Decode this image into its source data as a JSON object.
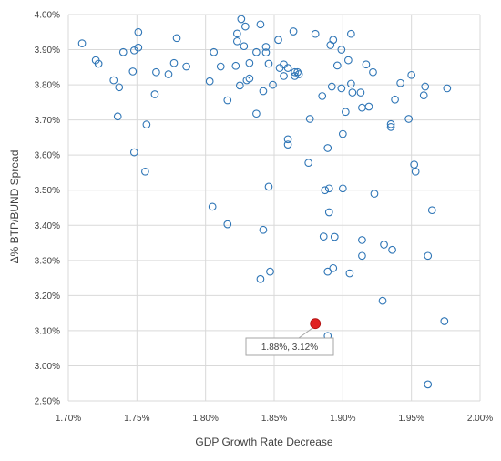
{
  "chart_data": {
    "type": "scatter",
    "title": "",
    "xlabel": "GDP Growth Rate Decrease",
    "ylabel": "Δ% BTP/BUND Spread",
    "xlim": [
      0.017,
      0.02
    ],
    "ylim": [
      0.029,
      0.04
    ],
    "x_ticks": [
      0.017,
      0.0175,
      0.018,
      0.0185,
      0.019,
      0.0195,
      0.02
    ],
    "y_ticks": [
      0.029,
      0.03,
      0.031,
      0.032,
      0.033,
      0.034,
      0.035,
      0.036,
      0.037,
      0.038,
      0.039,
      0.04
    ],
    "grid": "major both axes",
    "legend": "none",
    "colors": {
      "points": "#2e75b6",
      "highlight": "#e02020",
      "grid": "#d9d9d9"
    },
    "series": [
      {
        "values": [
          [
            0.0171,
            0.03918
          ],
          [
            0.0172,
            0.0387
          ],
          [
            0.01722,
            0.0386
          ],
          [
            0.01733,
            0.03813
          ],
          [
            0.01736,
            0.0371
          ],
          [
            0.01737,
            0.03793
          ],
          [
            0.0174,
            0.03893
          ],
          [
            0.01747,
            0.03838
          ],
          [
            0.01748,
            0.03608
          ],
          [
            0.01748,
            0.03898
          ],
          [
            0.01751,
            0.03906
          ],
          [
            0.01751,
            0.0395
          ],
          [
            0.01756,
            0.03553
          ],
          [
            0.01757,
            0.03687
          ],
          [
            0.01763,
            0.03773
          ],
          [
            0.01764,
            0.03836
          ],
          [
            0.01773,
            0.0383
          ],
          [
            0.01777,
            0.03862
          ],
          [
            0.01779,
            0.03933
          ],
          [
            0.01786,
            0.03852
          ],
          [
            0.01803,
            0.0381
          ],
          [
            0.01805,
            0.03453
          ],
          [
            0.01806,
            0.03893
          ],
          [
            0.01811,
            0.03852
          ],
          [
            0.01816,
            0.03403
          ],
          [
            0.01816,
            0.03756
          ],
          [
            0.01822,
            0.03854
          ],
          [
            0.01823,
            0.03946
          ],
          [
            0.01823,
            0.03924
          ],
          [
            0.01825,
            0.03798
          ],
          [
            0.01826,
            0.03987
          ],
          [
            0.01828,
            0.0391
          ],
          [
            0.01829,
            0.03966
          ],
          [
            0.0183,
            0.03813
          ],
          [
            0.01832,
            0.03862
          ],
          [
            0.01832,
            0.03818
          ],
          [
            0.01837,
            0.03718
          ],
          [
            0.01837,
            0.03893
          ],
          [
            0.0184,
            0.03972
          ],
          [
            0.0184,
            0.03247
          ],
          [
            0.01842,
            0.03387
          ],
          [
            0.01842,
            0.03782
          ],
          [
            0.01844,
            0.03908
          ],
          [
            0.01844,
            0.03892
          ],
          [
            0.01846,
            0.0386
          ],
          [
            0.01846,
            0.0351
          ],
          [
            0.01847,
            0.03268
          ],
          [
            0.01849,
            0.038
          ],
          [
            0.01853,
            0.03928
          ],
          [
            0.01854,
            0.03848
          ],
          [
            0.01857,
            0.03825
          ],
          [
            0.01857,
            0.03858
          ],
          [
            0.0186,
            0.03848
          ],
          [
            0.0186,
            0.03645
          ],
          [
            0.0186,
            0.0363
          ],
          [
            0.01864,
            0.03952
          ],
          [
            0.01865,
            0.03836
          ],
          [
            0.01865,
            0.03825
          ],
          [
            0.01867,
            0.03836
          ],
          [
            0.01868,
            0.0383
          ],
          [
            0.01875,
            0.03578
          ],
          [
            0.01876,
            0.03703
          ],
          [
            0.0188,
            0.03945
          ],
          [
            0.01885,
            0.03768
          ],
          [
            0.01886,
            0.03368
          ],
          [
            0.01887,
            0.035
          ],
          [
            0.01889,
            0.0362
          ],
          [
            0.01889,
            0.03268
          ],
          [
            0.01889,
            0.03085
          ],
          [
            0.0189,
            0.03437
          ],
          [
            0.0189,
            0.03505
          ],
          [
            0.01891,
            0.03913
          ],
          [
            0.01892,
            0.03795
          ],
          [
            0.01893,
            0.03928
          ],
          [
            0.01893,
            0.03278
          ],
          [
            0.01894,
            0.03367
          ],
          [
            0.01896,
            0.03855
          ],
          [
            0.01899,
            0.039
          ],
          [
            0.01899,
            0.0379
          ],
          [
            0.019,
            0.03505
          ],
          [
            0.019,
            0.0366
          ],
          [
            0.01902,
            0.03723
          ],
          [
            0.01904,
            0.0387
          ],
          [
            0.01905,
            0.03263
          ],
          [
            0.01906,
            0.03945
          ],
          [
            0.01906,
            0.03803
          ],
          [
            0.01907,
            0.03778
          ],
          [
            0.01913,
            0.03778
          ],
          [
            0.01914,
            0.03358
          ],
          [
            0.01914,
            0.03313
          ],
          [
            0.01914,
            0.03735
          ],
          [
            0.01917,
            0.03858
          ],
          [
            0.01919,
            0.03738
          ],
          [
            0.01922,
            0.03836
          ],
          [
            0.01923,
            0.0349
          ],
          [
            0.01929,
            0.03185
          ],
          [
            0.0193,
            0.03345
          ],
          [
            0.01935,
            0.0368
          ],
          [
            0.01935,
            0.03688
          ],
          [
            0.01936,
            0.0333
          ],
          [
            0.01938,
            0.03758
          ],
          [
            0.01942,
            0.03805
          ],
          [
            0.01948,
            0.03703
          ],
          [
            0.0195,
            0.03828
          ],
          [
            0.01952,
            0.03573
          ],
          [
            0.01953,
            0.03553
          ],
          [
            0.01959,
            0.0377
          ],
          [
            0.0196,
            0.03795
          ],
          [
            0.01962,
            0.02947
          ],
          [
            0.01962,
            0.03313
          ],
          [
            0.01965,
            0.03443
          ],
          [
            0.01974,
            0.03127
          ],
          [
            0.01976,
            0.0379
          ]
        ]
      }
    ],
    "highlight": {
      "x": 0.0188,
      "y": 0.0312
    },
    "annotations": [
      {
        "text": "1.88%, 3.12%",
        "x": 0.0188,
        "y": 0.0312
      }
    ]
  }
}
